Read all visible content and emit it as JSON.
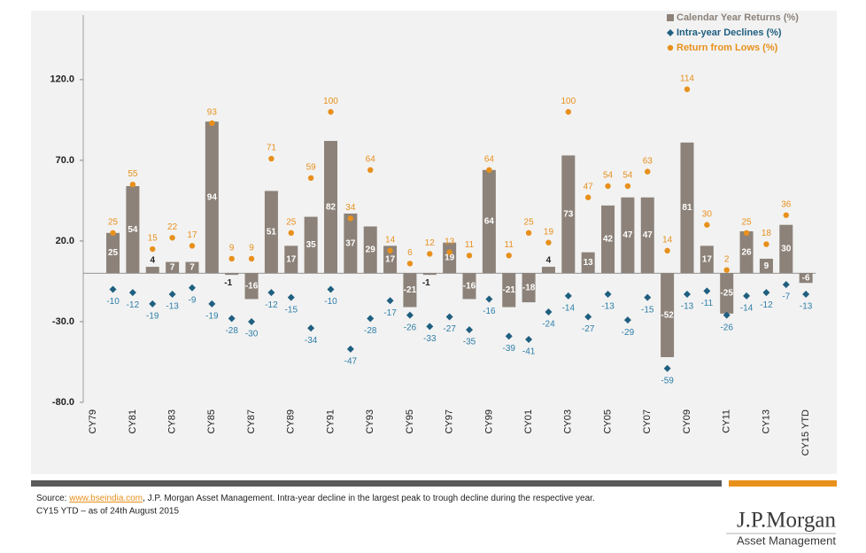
{
  "chart_data": {
    "type": "bar",
    "categories": [
      "CY79",
      null,
      "CY81",
      null,
      "CY83",
      null,
      "CY85",
      null,
      "CY87",
      null,
      "CY89",
      null,
      "CY91",
      null,
      "CY93",
      null,
      "CY95",
      null,
      "CY97",
      null,
      "CY99",
      null,
      "CY01",
      null,
      "CY03",
      null,
      "CY05",
      null,
      "CY07",
      null,
      "CY09",
      null,
      "CY11",
      null,
      "CY13",
      null,
      "CY15 YTD"
    ],
    "series": [
      {
        "name": "Calendar Year Returns (%)",
        "type": "bar",
        "marker": "square",
        "color": "#8c8279",
        "values": [
          null,
          25,
          54,
          4,
          7,
          7,
          94,
          -1,
          -16,
          51,
          17,
          35,
          82,
          37,
          29,
          17,
          -21,
          -1,
          19,
          -16,
          64,
          -21,
          -18,
          4,
          73,
          13,
          42,
          47,
          47,
          -52,
          81,
          17,
          -25,
          26,
          9,
          30,
          -6
        ]
      },
      {
        "name": "Intra-year Declines (%)",
        "type": "scatter",
        "marker": "diamond",
        "color": "#1f5f80",
        "values": [
          null,
          -10,
          -12,
          -19,
          -13,
          -9,
          -19,
          -28,
          -30,
          -12,
          -15,
          -34,
          -10,
          -47,
          -28,
          -17,
          -26,
          -33,
          -27,
          -35,
          -16,
          -39,
          -41,
          -24,
          -14,
          -27,
          -13,
          -29,
          -15,
          -59,
          -13,
          -11,
          -26,
          -14,
          -12,
          -7,
          -13
        ]
      },
      {
        "name": "Return from Lows (%)",
        "type": "scatter",
        "marker": "circle",
        "color": "#e8901c",
        "values": [
          null,
          25,
          55,
          15,
          22,
          17,
          93,
          9,
          9,
          71,
          25,
          59,
          100,
          34,
          64,
          14,
          6,
          12,
          13,
          11,
          64,
          11,
          25,
          19,
          100,
          47,
          54,
          54,
          63,
          14,
          114,
          30,
          2,
          25,
          18,
          36,
          null
        ]
      }
    ],
    "ylim": [
      -80,
      160
    ],
    "yticks": [
      {
        "value": -80,
        "label": "-80.0"
      },
      {
        "value": -30,
        "label": "-30.0"
      },
      {
        "value": 20,
        "label": "20.0"
      },
      {
        "value": 70,
        "label": "70.0"
      },
      {
        "value": 120,
        "label": "120.0"
      }
    ],
    "legend": "top-right"
  },
  "footer": {
    "source_label": "Source:",
    "source_link": "www.bseindia.com",
    "source_text": ", J.P. Morgan Asset Management.  Intra-year decline in the largest peak to trough decline during the respective year.",
    "note": "CY15 YTD – as of 24th August 2015"
  },
  "logo": {
    "brand": "J.P.Morgan",
    "division": "Asset Management"
  }
}
